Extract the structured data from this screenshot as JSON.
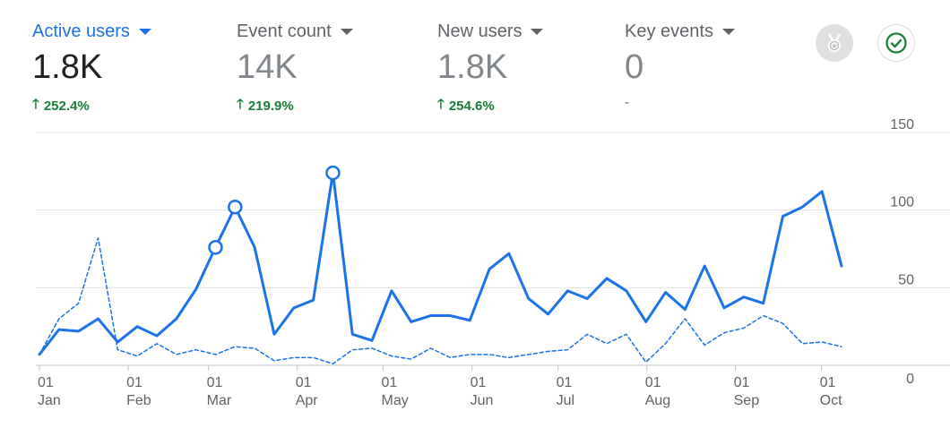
{
  "metrics": [
    {
      "label": "Active users",
      "value": "1.8K",
      "change": "252.4%",
      "direction": "up"
    },
    {
      "label": "Event count",
      "value": "14K",
      "change": "219.9%",
      "direction": "up"
    },
    {
      "label": "New users",
      "value": "1.8K",
      "change": "254.6%",
      "direction": "up"
    },
    {
      "label": "Key events",
      "value": "0",
      "change": "-",
      "direction": "none"
    }
  ],
  "icons": {
    "insights": "medal-icon",
    "verified": "check-circle-icon"
  },
  "colors": {
    "accent": "#1a73e8",
    "positive": "#188038",
    "grid": "#e0e0e0",
    "muted": "#5f6368"
  },
  "chart_data": {
    "type": "line",
    "ylim": [
      0,
      150
    ],
    "yticks": [
      0,
      50,
      100,
      150
    ],
    "xlim": [
      0,
      40
    ],
    "x_ticks": [
      {
        "x": 0,
        "day": "01",
        "month": "Jan"
      },
      {
        "x": 4.43,
        "day": "01",
        "month": "Feb"
      },
      {
        "x": 8.43,
        "day": "01",
        "month": "Mar"
      },
      {
        "x": 12.86,
        "day": "01",
        "month": "Apr"
      },
      {
        "x": 17.14,
        "day": "01",
        "month": "May"
      },
      {
        "x": 21.57,
        "day": "01",
        "month": "Jun"
      },
      {
        "x": 25.86,
        "day": "01",
        "month": "Jul"
      },
      {
        "x": 30.29,
        "day": "01",
        "month": "Aug"
      },
      {
        "x": 34.71,
        "day": "01",
        "month": "Sep"
      },
      {
        "x": 39,
        "day": "01",
        "month": "Oct"
      }
    ],
    "series": [
      {
        "name": "Active users",
        "style": "solid",
        "color": "#1a73e8",
        "x": [
          0,
          1,
          2,
          3,
          4,
          5,
          6,
          7,
          8,
          9,
          10,
          11,
          12,
          13,
          14,
          15,
          16,
          17,
          18,
          19,
          20,
          21,
          22,
          23,
          24,
          25,
          26,
          27,
          28,
          29,
          30,
          31,
          32,
          33,
          34,
          35,
          36,
          37,
          38,
          39,
          40,
          41
        ],
        "values": [
          7,
          23,
          22,
          30,
          15,
          25,
          19,
          30,
          49,
          76,
          102,
          76,
          20,
          37,
          42,
          124,
          20,
          16,
          48,
          28,
          32,
          32,
          29,
          62,
          72,
          43,
          33,
          48,
          43,
          56,
          48,
          28,
          47,
          36,
          64,
          37,
          44,
          40,
          96,
          102,
          112,
          64
        ],
        "markers": [
          9,
          10,
          15
        ]
      },
      {
        "name": "Active users (preceding period)",
        "style": "dashed",
        "color": "#1a73e8",
        "x": [
          0,
          1,
          2,
          3,
          4,
          5,
          6,
          7,
          8,
          9,
          10,
          11,
          12,
          13,
          14,
          15,
          16,
          17,
          18,
          19,
          20,
          21,
          22,
          23,
          24,
          25,
          26,
          27,
          28,
          29,
          30,
          31,
          32,
          33,
          34,
          35,
          36,
          37,
          38,
          39,
          40,
          41
        ],
        "values": [
          7,
          30,
          40,
          82,
          10,
          6,
          14,
          7,
          10,
          7,
          12,
          11,
          3,
          5,
          5,
          1,
          10,
          11,
          6,
          4,
          11,
          5,
          7,
          7,
          5,
          7,
          9,
          10,
          20,
          14,
          20,
          2,
          14,
          30,
          13,
          21,
          24,
          32,
          27,
          14,
          15,
          12
        ]
      }
    ]
  }
}
